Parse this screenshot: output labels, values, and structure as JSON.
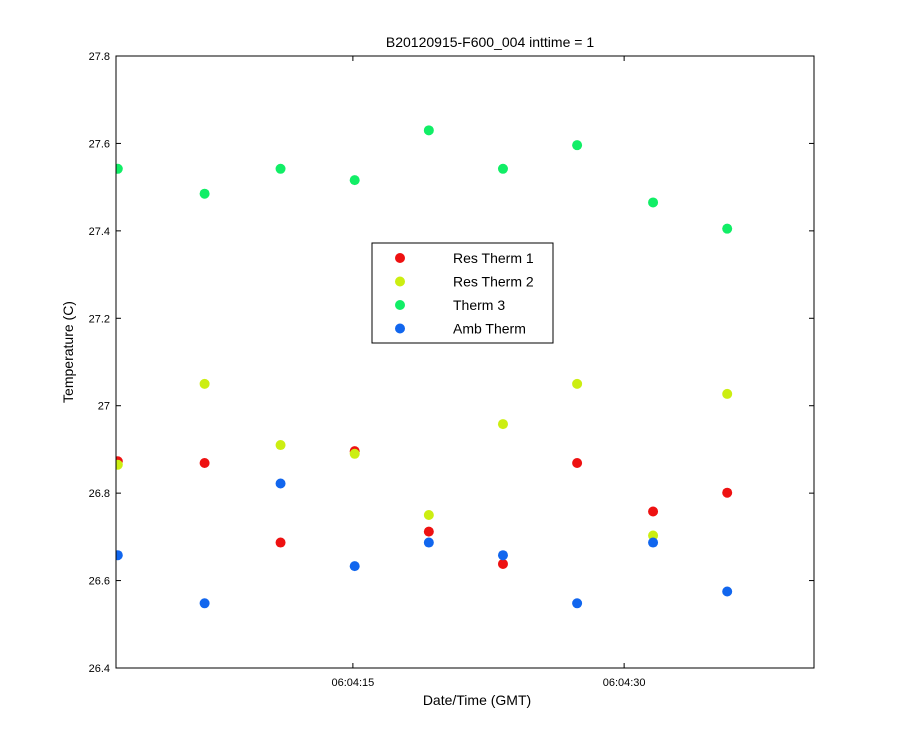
{
  "chart_data": {
    "type": "scatter",
    "title": "B20120915-F600_004 inttime = 1",
    "xlabel": "Date/Time (GMT)",
    "ylabel": "Temperature (C)",
    "x_unit": "seconds after 06:04:00 GMT",
    "xlim": [
      1.9,
      40.5
    ],
    "ylim": [
      26.4,
      27.8
    ],
    "x_ticks": [
      {
        "value": 15,
        "label": "06:04:15"
      },
      {
        "value": 30,
        "label": "06:04:30"
      }
    ],
    "y_ticks": [
      {
        "value": 26.4,
        "label": "26.4"
      },
      {
        "value": 26.6,
        "label": "26.6"
      },
      {
        "value": 26.8,
        "label": "26.8"
      },
      {
        "value": 27.0,
        "label": "27"
      },
      {
        "value": 27.2,
        "label": "27.2"
      },
      {
        "value": 27.4,
        "label": "27.4"
      },
      {
        "value": 27.6,
        "label": "27.6"
      },
      {
        "value": 27.8,
        "label": "27.8"
      }
    ],
    "grid": false,
    "legend_position": "center",
    "x": [
      2.0,
      6.8,
      11.0,
      15.1,
      19.2,
      23.3,
      27.4,
      31.6,
      35.7
    ],
    "series": [
      {
        "name": "Res Therm 1",
        "color": "#ee1111",
        "values": [
          26.873,
          26.869,
          26.687,
          26.896,
          26.712,
          26.638,
          26.869,
          26.758,
          26.801
        ]
      },
      {
        "name": "Res Therm 2",
        "color": "#ccee11",
        "values": [
          26.865,
          27.05,
          26.91,
          26.89,
          26.75,
          26.958,
          27.05,
          26.703,
          27.027
        ]
      },
      {
        "name": "Therm 3",
        "color": "#11ee66",
        "values": [
          27.542,
          27.485,
          27.542,
          27.516,
          27.63,
          27.542,
          27.596,
          27.465,
          27.405
        ]
      },
      {
        "name": "Amb Therm",
        "color": "#1166ee",
        "values": [
          26.658,
          26.548,
          26.822,
          26.633,
          26.687,
          26.658,
          26.548,
          26.687,
          26.575
        ]
      }
    ]
  }
}
